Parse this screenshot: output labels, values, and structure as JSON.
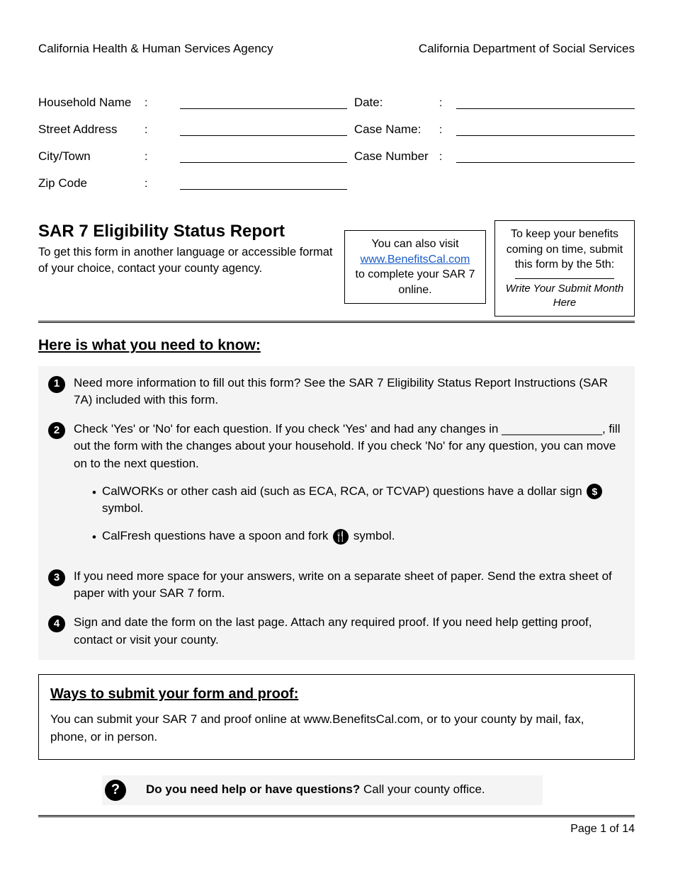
{
  "header": {
    "left": "California Health & Human Services Agency",
    "right": "California Department of Social Services"
  },
  "fields": {
    "left": [
      "Household Name",
      "Street Address",
      "City/Town",
      "Zip Code"
    ],
    "right": [
      "Date:",
      "Case Name:",
      "Case Number"
    ]
  },
  "title": {
    "main": "SAR 7 Eligibility Status Report",
    "sub": "To get this form in another language or accessible format of your choice, contact your county agency."
  },
  "online_box": {
    "line1": "You can also visit",
    "link": "www.BenefitsCal.com",
    "line2": "to complete your SAR 7 online."
  },
  "deadline_box": {
    "top": "To keep your benefits coming on time, submit this form by the 5th:",
    "caption": "Write Your Submit Month Here"
  },
  "know": {
    "heading": "Here is what you need to know:",
    "items": [
      "Need more information to fill out this form? See the SAR 7 Eligibility Status Report Instructions (SAR 7A) included with this form.",
      "Check 'Yes' or 'No' for each question. If you check 'Yes' and had any changes in _______________, fill out the form with the changes about your household. If you check 'No' for any question, you can move on to the next question.",
      "If you need more space for your answers, write on a separate sheet of paper. Send the extra sheet of paper with your SAR 7 form.",
      "Sign and date the form on the last page. Attach any required proof. If you need help getting proof, contact or visit your county."
    ],
    "bullet_cash_pre": "CalWORKs or other cash aid (such as ECA, RCA, or TCVAP) questions have a dollar sign",
    "bullet_cash_post": "symbol.",
    "bullet_food_pre": "CalFresh questions have a spoon and fork",
    "bullet_food_post": "symbol."
  },
  "submit": {
    "heading": "Ways to submit your form and proof:",
    "body": "You can submit your SAR 7 and proof online at www.BenefitsCal.com, or to your county by mail, fax, phone, or in person."
  },
  "help": {
    "bold": "Do you need help or have questions?",
    "rest": " Call your county office."
  },
  "footer": "Page 1 of 14",
  "icons": {
    "dollar": "$",
    "fork": "🍴",
    "question": "?"
  }
}
